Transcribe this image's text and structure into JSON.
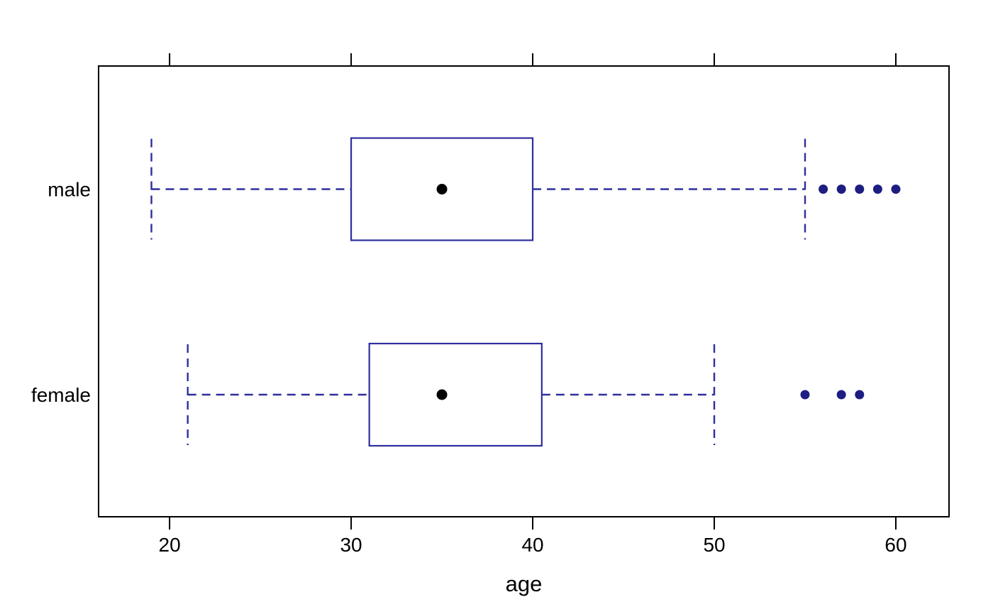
{
  "figure": {
    "background": "#ffffff"
  },
  "chart_data": {
    "type": "boxplot",
    "orientation": "horizontal",
    "title": "",
    "xlabel": "age",
    "ylabel": "",
    "x_ticks": [
      20,
      30,
      40,
      50,
      60
    ],
    "xlim": [
      16.09,
      62.93
    ],
    "grid": false,
    "axis_mirrored_ticks": true,
    "categories": [
      "male",
      "female"
    ],
    "groups": [
      {
        "label": "male",
        "whisker_low": 19,
        "q1": 30,
        "center": 35,
        "q3": 40,
        "whisker_high": 55,
        "outliers": [
          56,
          57,
          58,
          59,
          60
        ]
      },
      {
        "label": "female",
        "whisker_low": 21,
        "q1": 31,
        "center": 35,
        "q3": 40.5,
        "whisker_high": 50,
        "outliers": [
          55,
          57,
          58
        ]
      }
    ],
    "colors": {
      "box_line": "#2E2E9E",
      "outlier_dot": "#1D1D82",
      "center_dot": "#000000",
      "frame": "#000000",
      "text": "#000000",
      "background": "#ffffff"
    }
  }
}
